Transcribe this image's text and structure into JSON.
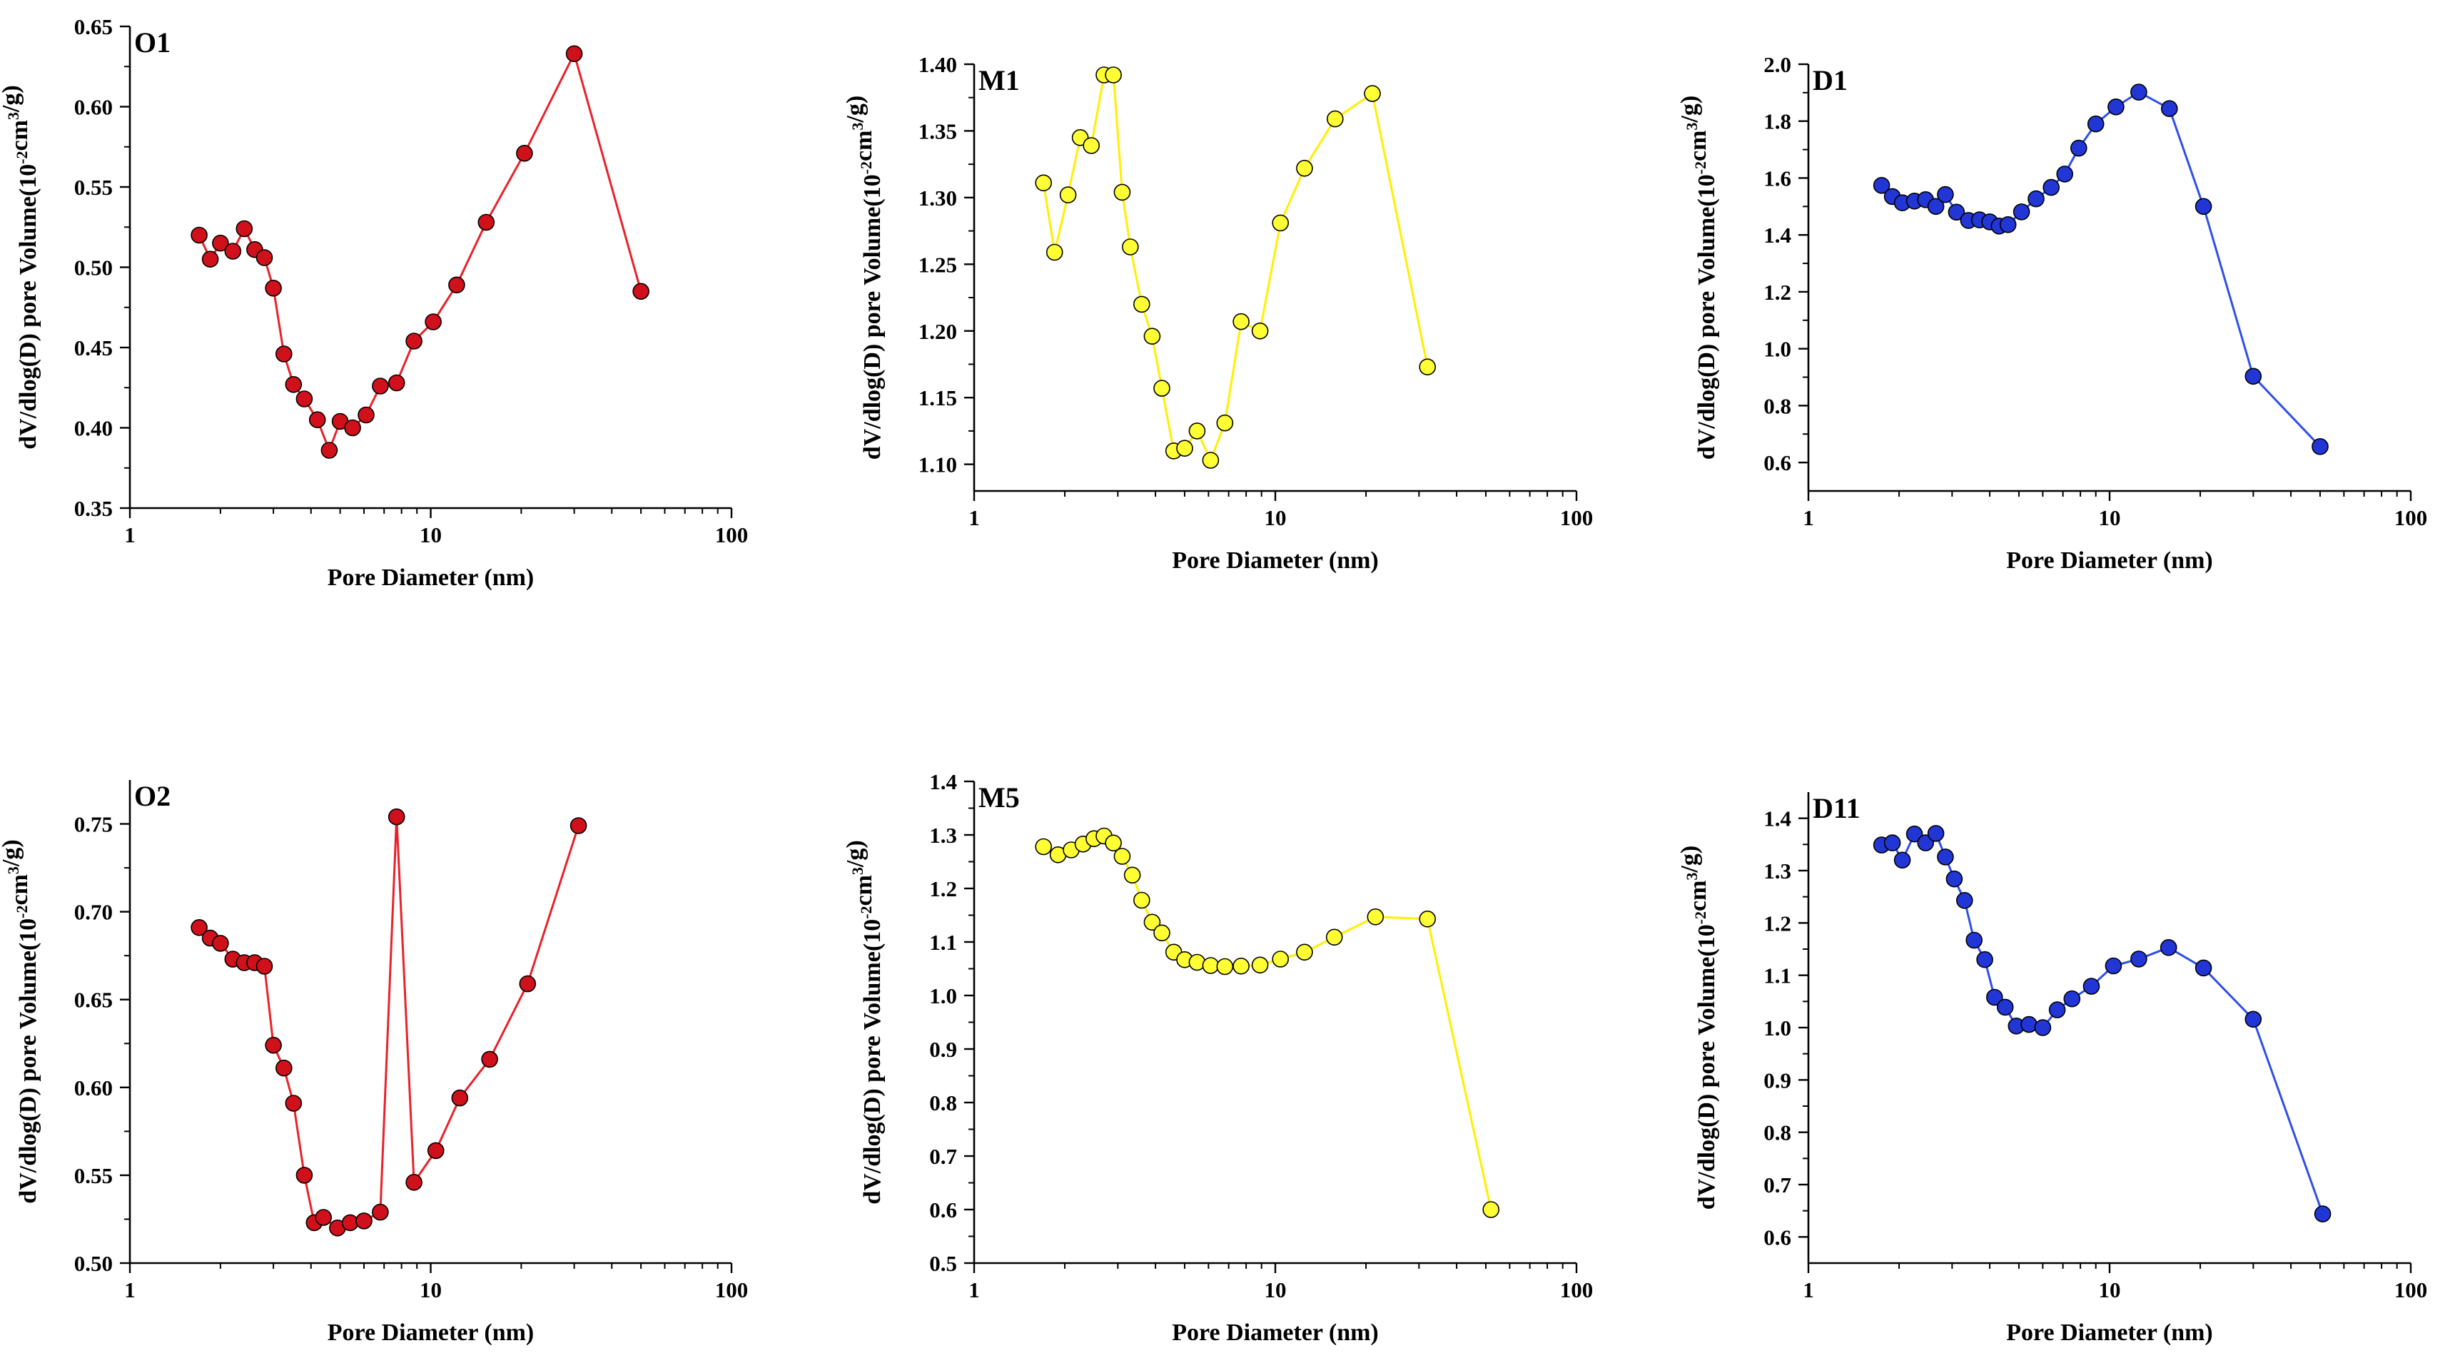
{
  "figure": {
    "chart_data": [
      {
        "type": "line",
        "panel_label": "O1",
        "xlabel": "Pore Diameter (nm)",
        "ylabel": "dV/dlog(D) pore Volume(10^-2cm^3/g)",
        "xscale": "log",
        "xlim": [
          1,
          100
        ],
        "xticks": [
          "1",
          "10",
          "100"
        ],
        "ylim": [
          0.35,
          0.65
        ],
        "yticks": [
          "0.35",
          "0.40",
          "0.45",
          "0.50",
          "0.55",
          "0.60",
          "0.65"
        ],
        "grid": false,
        "colors": {
          "line": "#e8222a",
          "marker": "#d0101a"
        },
        "series": [
          {
            "marker": "filled-circle",
            "x": [
              1.7,
              1.85,
              2.0,
              2.2,
              2.4,
              2.6,
              2.8,
              3.0,
              3.25,
              3.5,
              3.8,
              4.2,
              4.6,
              5.0,
              5.5,
              6.1,
              6.8,
              7.7,
              8.8,
              10.2,
              12.2,
              15.3,
              20.5,
              30.0,
              50.0
            ],
            "y": [
              0.52,
              0.505,
              0.515,
              0.51,
              0.524,
              0.511,
              0.506,
              0.487,
              0.446,
              0.427,
              0.418,
              0.405,
              0.386,
              0.404,
              0.4,
              0.408,
              0.426,
              0.428,
              0.454,
              0.466,
              0.489,
              0.528,
              0.571,
              0.633,
              0.485
            ]
          }
        ]
      },
      {
        "type": "line",
        "panel_label": "M1",
        "xlabel": "Pore Diameter (nm)",
        "ylabel": "dV/dlog(D) pore Volume(10^-2cm^3/g)",
        "xscale": "log",
        "xlim": [
          1,
          100
        ],
        "xticks": [
          "1",
          "10",
          "100"
        ],
        "ylim": [
          1.08,
          1.4
        ],
        "yticks": [
          "1.10",
          "1.15",
          "1.20",
          "1.25",
          "1.30",
          "1.35",
          "1.40"
        ],
        "grid": false,
        "colors": {
          "line": "#fff000",
          "marker": "#ffff33"
        },
        "series": [
          {
            "marker": "filled-circle",
            "x": [
              1.7,
              1.85,
              2.05,
              2.25,
              2.45,
              2.7,
              2.9,
              3.1,
              3.3,
              3.6,
              3.9,
              4.2,
              4.6,
              5.0,
              5.5,
              6.1,
              6.8,
              7.7,
              8.9,
              10.4,
              12.5,
              15.8,
              21.0,
              32.0
            ],
            "y": [
              1.311,
              1.259,
              1.302,
              1.345,
              1.339,
              1.392,
              1.392,
              1.304,
              1.263,
              1.22,
              1.196,
              1.157,
              1.11,
              1.112,
              1.125,
              1.103,
              1.131,
              1.207,
              1.2,
              1.281,
              1.322,
              1.359,
              1.378,
              1.173
            ]
          }
        ]
      },
      {
        "type": "line",
        "panel_label": "D1",
        "xlabel": "Pore Diameter (nm)",
        "ylabel": "dV/dlog(D) pore Volume(10^-2cm^3/g)",
        "xscale": "log",
        "xlim": [
          1,
          100
        ],
        "xticks": [
          "1",
          "10",
          "100"
        ],
        "ylim": [
          0.5,
          2.0
        ],
        "yticks": [
          "0.6",
          "0.8",
          "1.0",
          "1.2",
          "1.4",
          "1.6",
          "1.8",
          "2.0"
        ],
        "grid": false,
        "colors": {
          "line": "#2f4fe8",
          "marker": "#2236d6"
        },
        "series": [
          {
            "marker": "filled-circle",
            "x": [
              1.75,
              1.9,
              2.05,
              2.25,
              2.45,
              2.65,
              2.85,
              3.1,
              3.4,
              3.7,
              4.0,
              4.3,
              4.6,
              5.1,
              5.7,
              6.4,
              7.1,
              7.9,
              9.0,
              10.5,
              12.5,
              15.8,
              20.5,
              30.0,
              50.0
            ],
            "y": [
              1.574,
              1.535,
              1.513,
              1.519,
              1.524,
              1.5,
              1.542,
              1.48,
              1.451,
              1.453,
              1.446,
              1.431,
              1.436,
              1.481,
              1.527,
              1.567,
              1.614,
              1.705,
              1.79,
              1.85,
              1.902,
              1.844,
              1.5,
              0.903,
              0.656
            ]
          }
        ]
      },
      {
        "type": "line",
        "panel_label": "O2",
        "xlabel": "Pore Diameter (nm)",
        "ylabel": "dV/dlog(D) pore Volume(10^-2cm^3/g)",
        "xscale": "log",
        "xlim": [
          1,
          100
        ],
        "xticks": [
          "1",
          "10",
          "100"
        ],
        "ylim": [
          0.5,
          0.775
        ],
        "yticks": [
          "0.50",
          "0.55",
          "0.60",
          "0.65",
          "0.70",
          "0.75"
        ],
        "grid": false,
        "colors": {
          "line": "#e8222a",
          "marker": "#d0101a"
        },
        "series": [
          {
            "marker": "filled-circle",
            "x": [
              1.7,
              1.85,
              2.0,
              2.2,
              2.4,
              2.6,
              2.8,
              3.0,
              3.25,
              3.5,
              3.8,
              4.1,
              4.4,
              4.9,
              5.4,
              6.0,
              6.8,
              7.7,
              8.8,
              10.4,
              12.5,
              15.7,
              21.0,
              31.0
            ],
            "y": [
              0.691,
              0.685,
              0.682,
              0.673,
              0.671,
              0.671,
              0.669,
              0.624,
              0.611,
              0.591,
              0.55,
              0.523,
              0.526,
              0.52,
              0.523,
              0.524,
              0.529,
              0.754,
              0.546,
              0.564,
              0.594,
              0.616,
              0.659,
              0.749
            ]
          }
        ]
      },
      {
        "type": "line",
        "panel_label": "M5",
        "xlabel": "Pore Diameter (nm)",
        "ylabel": "dV/dlog(D) pore Volume(10^-2cm^3/g)",
        "xscale": "log",
        "xlim": [
          1,
          100
        ],
        "xticks": [
          "1",
          "10",
          "100"
        ],
        "ylim": [
          0.5,
          1.4
        ],
        "yticks": [
          "0.5",
          "0.6",
          "0.7",
          "0.8",
          "0.9",
          "1.0",
          "1.1",
          "1.2",
          "1.3",
          "1.4"
        ],
        "grid": false,
        "colors": {
          "line": "#fff000",
          "marker": "#ffff33"
        },
        "series": [
          {
            "marker": "filled-circle",
            "x": [
              1.7,
              1.9,
              2.1,
              2.3,
              2.5,
              2.7,
              2.9,
              3.1,
              3.35,
              3.6,
              3.9,
              4.2,
              4.6,
              5.0,
              5.5,
              6.1,
              6.8,
              7.7,
              8.9,
              10.4,
              12.5,
              15.7,
              21.5,
              32.0,
              52.0
            ],
            "y": [
              1.278,
              1.263,
              1.272,
              1.283,
              1.293,
              1.298,
              1.285,
              1.26,
              1.225,
              1.178,
              1.137,
              1.117,
              1.081,
              1.067,
              1.062,
              1.056,
              1.054,
              1.055,
              1.057,
              1.068,
              1.081,
              1.109,
              1.147,
              1.143,
              0.6
            ]
          }
        ]
      },
      {
        "type": "line",
        "panel_label": "D11",
        "xlabel": "Pore Diameter (nm)",
        "ylabel": "dV/dlog(D) pore Volume(10^-2cm^3/g)",
        "xscale": "log",
        "xlim": [
          1,
          100
        ],
        "xticks": [
          "1",
          "10",
          "100"
        ],
        "ylim": [
          0.55,
          1.45
        ],
        "yticks": [
          "0.6",
          "0.7",
          "0.8",
          "0.9",
          "1.0",
          "1.1",
          "1.2",
          "1.3",
          "1.4"
        ],
        "grid": false,
        "colors": {
          "line": "#2f4fe8",
          "marker": "#2236d6"
        },
        "series": [
          {
            "marker": "filled-circle",
            "x": [
              1.75,
              1.9,
              2.05,
              2.25,
              2.45,
              2.65,
              2.85,
              3.05,
              3.3,
              3.55,
              3.85,
              4.15,
              4.5,
              4.9,
              5.4,
              6.0,
              6.7,
              7.5,
              8.7,
              10.3,
              12.5,
              15.7,
              20.5,
              30.0,
              51.0
            ],
            "y": [
              1.349,
              1.353,
              1.32,
              1.37,
              1.353,
              1.371,
              1.326,
              1.284,
              1.243,
              1.167,
              1.13,
              1.058,
              1.039,
              1.003,
              1.006,
              1.0,
              1.034,
              1.055,
              1.079,
              1.118,
              1.131,
              1.153,
              1.114,
              1.016,
              0.644
            ]
          }
        ]
      }
    ]
  }
}
